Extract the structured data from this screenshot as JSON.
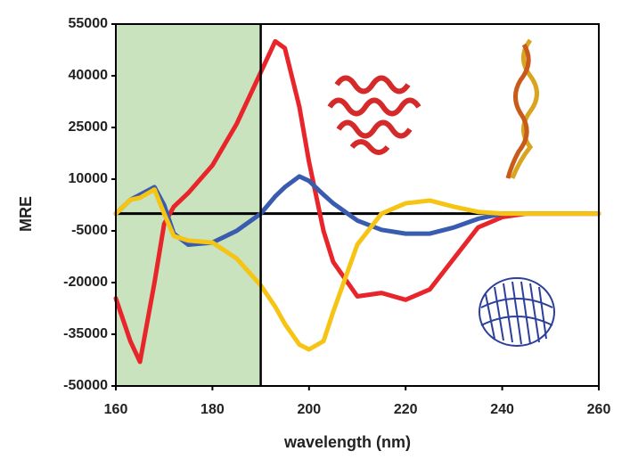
{
  "chart_data": {
    "type": "line",
    "xlabel": "wavelength (nm)",
    "ylabel": "MRE",
    "x": [
      160,
      163,
      165,
      168,
      170,
      172,
      175,
      180,
      185,
      190,
      193,
      195,
      198,
      200,
      203,
      205,
      210,
      215,
      220,
      225,
      230,
      235,
      240,
      245,
      250,
      260
    ],
    "series": [
      {
        "color": "#e8252a",
        "values": [
          -24600,
          -37000,
          -43000,
          -20000,
          -3000,
          2000,
          6000,
          14000,
          26000,
          41000,
          50000,
          48000,
          31000,
          15000,
          -5000,
          -14000,
          -24000,
          -23000,
          -25000,
          -22000,
          -13000,
          -4000,
          -1000,
          0,
          0,
          0
        ]
      },
      {
        "color": "#3a5cb0",
        "values": [
          0,
          4000,
          5500,
          7700,
          2500,
          -5800,
          -9000,
          -8400,
          -5000,
          0,
          5000,
          7700,
          10800,
          9500,
          5500,
          3000,
          -2000,
          -4700,
          -5800,
          -5800,
          -4000,
          -1500,
          0,
          0,
          0,
          0
        ]
      },
      {
        "color": "#f5c414",
        "values": [
          0,
          4000,
          4600,
          7000,
          0,
          -6500,
          -7800,
          -8400,
          -13000,
          -20800,
          -27000,
          -32000,
          -38000,
          -39400,
          -37000,
          -28500,
          -9000,
          0,
          3000,
          3800,
          2000,
          500,
          0,
          0,
          0,
          0
        ]
      }
    ],
    "xlim": [
      160,
      260
    ],
    "xticks": [
      160,
      180,
      200,
      220,
      240,
      260
    ],
    "ylim": [
      -50000,
      55000
    ],
    "yticks": [
      -50000,
      -35000,
      -20000,
      -5000,
      10000,
      25000,
      40000,
      55000
    ],
    "shaded_region": [
      160,
      190
    ],
    "shade_color": "#c8e3bd",
    "vline": 190,
    "hline": 0
  }
}
